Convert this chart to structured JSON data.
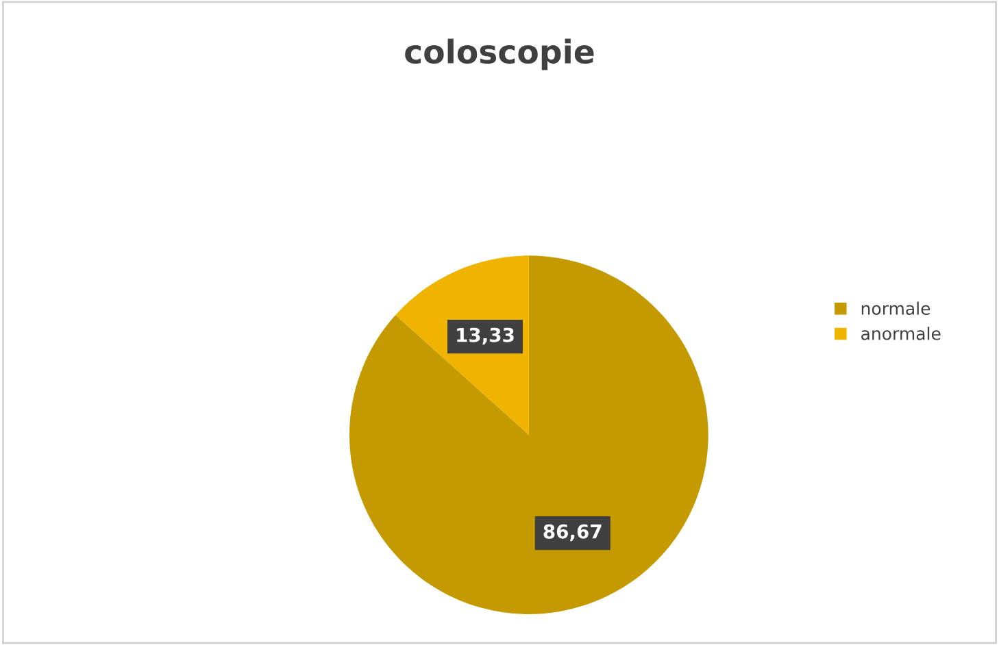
{
  "chart_data": {
    "type": "pie",
    "title": "coloscopie",
    "categories": [
      "normale",
      "anormale"
    ],
    "values": [
      86.67,
      13.33
    ],
    "value_labels": [
      "86,67",
      "13,33"
    ],
    "colors": [
      "#c49a00",
      "#f0b400"
    ],
    "legend": "right"
  }
}
